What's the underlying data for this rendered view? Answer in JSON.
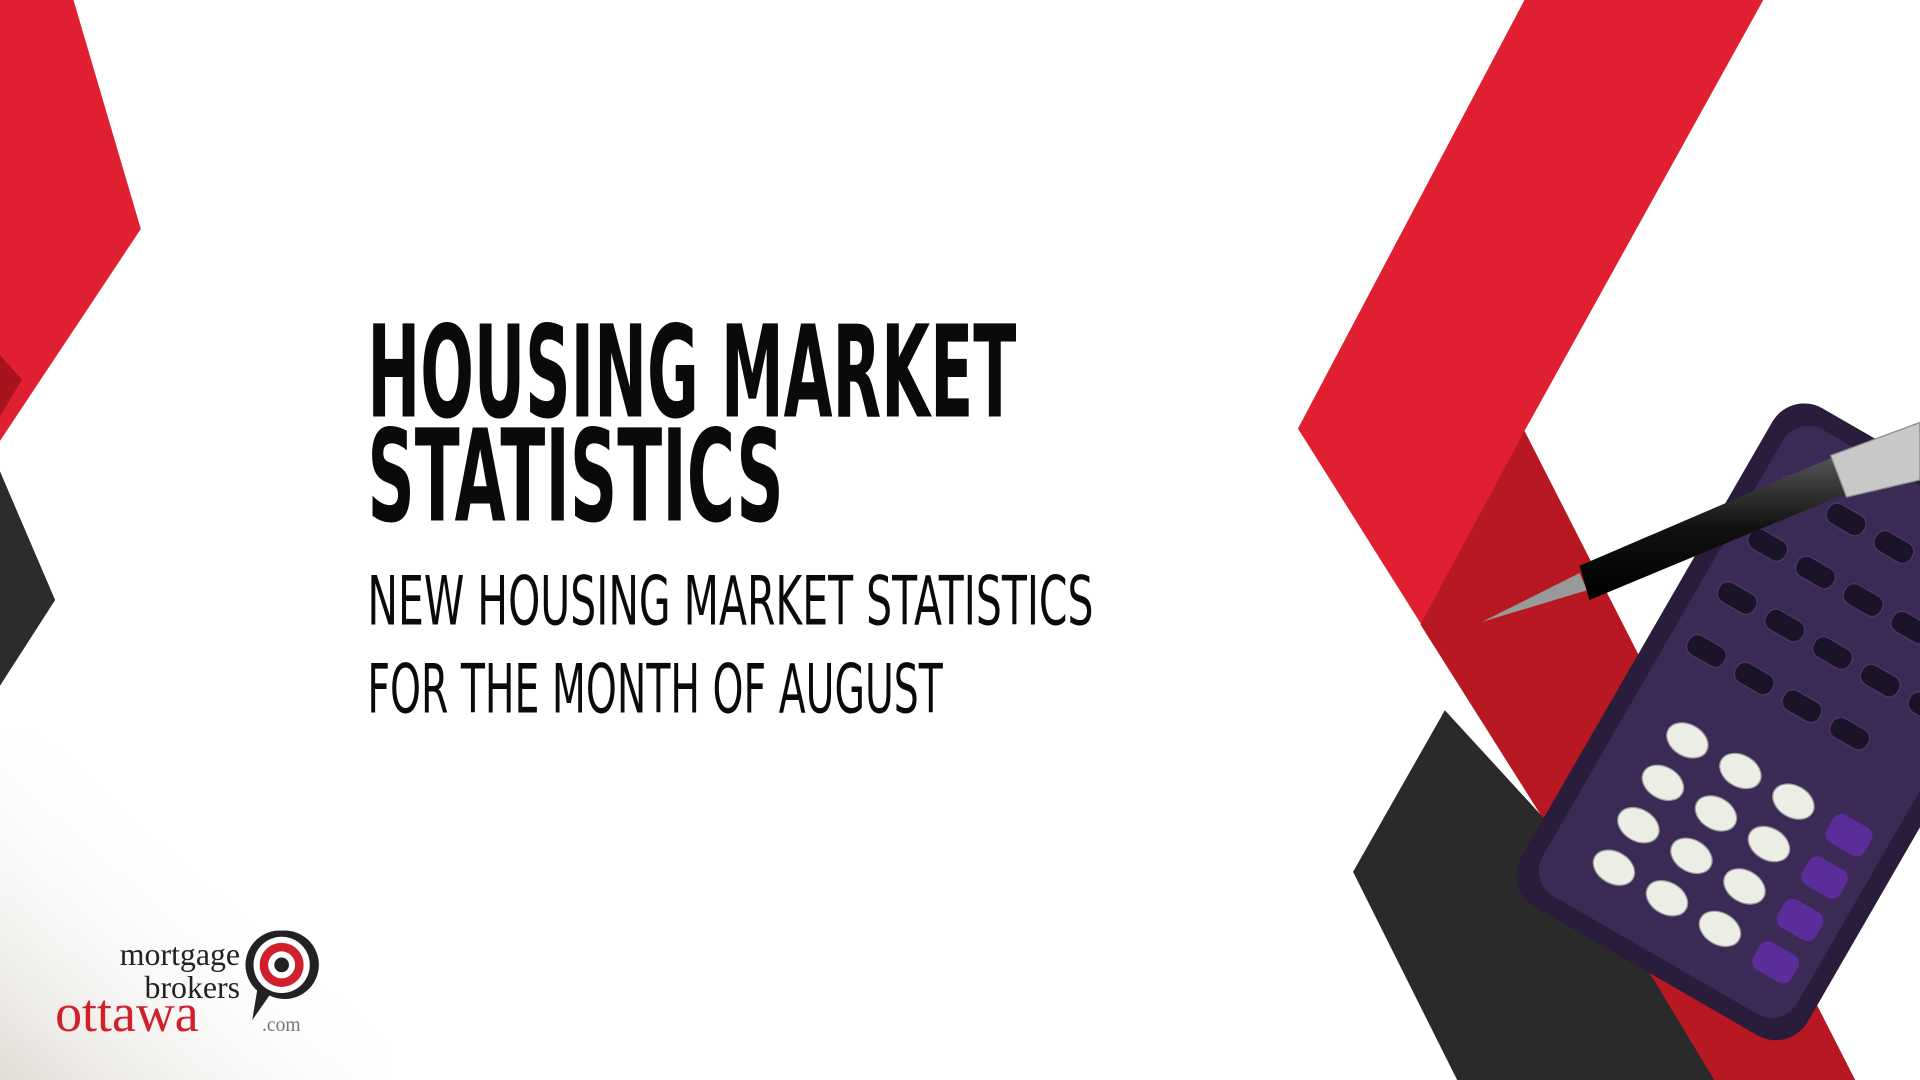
{
  "title_lines": [
    "HOUSING MARKET",
    "STATISTICS"
  ],
  "subtitle_lines": [
    "NEW HOUSING MARKET STATISTICS",
    "FOR THE MONTH OF AUGUST"
  ],
  "logo": {
    "line1": "mortgage",
    "line2": "brokers",
    "brand": "ottawa",
    "suffix": ".com"
  }
}
